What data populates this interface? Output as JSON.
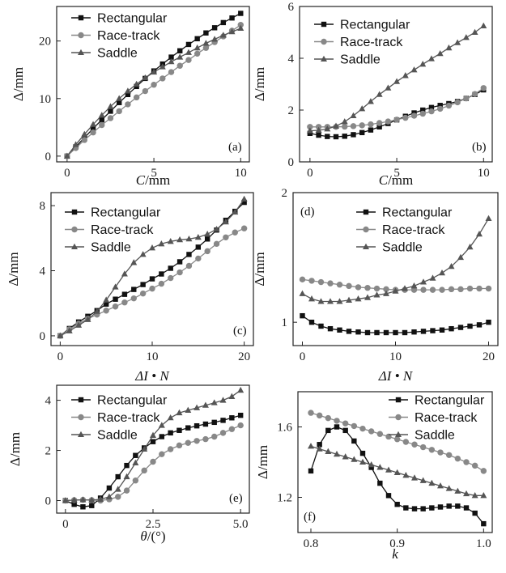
{
  "figure": {
    "series_names": [
      "Rectangular",
      "Race-track",
      "Saddle"
    ],
    "series_colors": [
      "#111111",
      "#888888",
      "#555555"
    ],
    "series_markers": [
      "square",
      "circle",
      "triangle"
    ]
  },
  "chart_data": [
    {
      "panel": "(a)",
      "type": "line",
      "xlabel_italic": "C",
      "xlabel_rest": "/mm",
      "ylabel": "Δ/mm",
      "xlim": [
        -0.6,
        10.5
      ],
      "ylim": [
        -1,
        26
      ],
      "xticks": [
        0,
        5,
        10
      ],
      "yticks": [
        0,
        10,
        20
      ],
      "legend": "top-left",
      "grid": false,
      "x": [
        0,
        0.5,
        1,
        1.5,
        2,
        2.5,
        3,
        3.5,
        4,
        4.5,
        5,
        5.5,
        6,
        6.5,
        7,
        7.5,
        8,
        8.5,
        9,
        9.5,
        10
      ],
      "series": [
        {
          "name": "Rectangular",
          "values": [
            0,
            1.6,
            3.2,
            4.8,
            6.3,
            7.8,
            9.3,
            10.7,
            12.1,
            13.5,
            14.8,
            16.0,
            17.2,
            18.3,
            19.4,
            20.4,
            21.4,
            22.3,
            23.2,
            24.0,
            24.8
          ]
        },
        {
          "name": "Race-track",
          "values": [
            0,
            1.4,
            2.8,
            4.1,
            5.4,
            6.6,
            7.8,
            9.0,
            10.2,
            11.3,
            12.4,
            13.5,
            14.6,
            15.7,
            16.7,
            17.8,
            18.8,
            19.8,
            20.8,
            21.8,
            22.8
          ]
        },
        {
          "name": "Saddle",
          "values": [
            0,
            2.0,
            3.8,
            5.5,
            7.1,
            8.6,
            10.0,
            11.3,
            12.5,
            13.6,
            14.6,
            15.5,
            16.4,
            17.2,
            18.0,
            18.8,
            19.6,
            20.3,
            21.0,
            21.6,
            22.2
          ]
        }
      ]
    },
    {
      "panel": "(b)",
      "type": "line",
      "xlabel_italic": "C",
      "xlabel_rest": "/mm",
      "ylabel": "Δ/mm",
      "xlim": [
        -0.6,
        10.5
      ],
      "ylim": [
        0,
        6
      ],
      "xticks": [
        0,
        5,
        10
      ],
      "yticks": [
        0,
        2,
        4,
        6
      ],
      "legend": "top-left",
      "grid": false,
      "x": [
        0,
        0.5,
        1,
        1.5,
        2,
        2.5,
        3,
        3.5,
        4,
        4.5,
        5,
        5.5,
        6,
        6.5,
        7,
        7.5,
        8,
        8.5,
        9,
        9.5,
        10
      ],
      "series": [
        {
          "name": "Rectangular",
          "values": [
            1.1,
            1.03,
            0.98,
            0.97,
            0.99,
            1.05,
            1.13,
            1.23,
            1.35,
            1.48,
            1.62,
            1.76,
            1.89,
            2.0,
            2.1,
            2.18,
            2.25,
            2.33,
            2.45,
            2.6,
            2.78
          ]
        },
        {
          "name": "Race-track",
          "values": [
            1.35,
            1.35,
            1.35,
            1.35,
            1.36,
            1.38,
            1.41,
            1.45,
            1.5,
            1.56,
            1.63,
            1.7,
            1.78,
            1.86,
            1.95,
            2.05,
            2.17,
            2.3,
            2.45,
            2.62,
            2.85
          ]
        },
        {
          "name": "Saddle",
          "values": [
            1.2,
            1.22,
            1.27,
            1.38,
            1.55,
            1.78,
            2.05,
            2.33,
            2.6,
            2.85,
            3.1,
            3.33,
            3.55,
            3.77,
            3.98,
            4.18,
            4.4,
            4.6,
            4.8,
            5.0,
            5.25
          ]
        }
      ]
    },
    {
      "panel": "(c)",
      "type": "line",
      "xlabel_rest": "ΔI • N",
      "ylabel": "Δ/mm",
      "xlim": [
        -1,
        21
      ],
      "ylim": [
        -0.6,
        8.8
      ],
      "xticks": [
        0,
        10,
        20
      ],
      "yticks": [
        0,
        4,
        8
      ],
      "legend": "top-left",
      "grid": false,
      "x": [
        0,
        1,
        2,
        3,
        4,
        5,
        6,
        7,
        8,
        9,
        10,
        11,
        12,
        13,
        14,
        15,
        16,
        17,
        18,
        19,
        20
      ],
      "series": [
        {
          "name": "Rectangular",
          "values": [
            0,
            0.45,
            0.85,
            1.2,
            1.55,
            1.95,
            2.25,
            2.55,
            2.85,
            3.15,
            3.5,
            3.8,
            4.15,
            4.55,
            5.0,
            5.45,
            5.95,
            6.5,
            7.1,
            7.65,
            8.2
          ]
        },
        {
          "name": "Race-track",
          "values": [
            0,
            0.4,
            0.75,
            1.05,
            1.3,
            1.55,
            1.8,
            2.05,
            2.3,
            2.6,
            2.9,
            3.2,
            3.55,
            3.9,
            4.3,
            4.75,
            5.2,
            5.65,
            6.05,
            6.35,
            6.6
          ]
        },
        {
          "name": "Saddle",
          "values": [
            0,
            0.3,
            0.65,
            1.0,
            1.5,
            2.2,
            3.0,
            3.8,
            4.5,
            5.0,
            5.4,
            5.65,
            5.8,
            5.9,
            5.95,
            6.05,
            6.25,
            6.55,
            7.0,
            7.6,
            8.4
          ]
        }
      ]
    },
    {
      "panel": "(d)",
      "type": "line",
      "xlabel_rest": "ΔI • N",
      "ylabel": "Δ/mm",
      "xlim": [
        -1,
        21
      ],
      "ylim": [
        0.82,
        2.0
      ],
      "xticks": [
        0,
        10,
        20
      ],
      "yticks": [
        1,
        2
      ],
      "legend": "top-right",
      "grid": false,
      "x": [
        0,
        1,
        2,
        3,
        4,
        5,
        6,
        7,
        8,
        9,
        10,
        11,
        12,
        13,
        14,
        15,
        16,
        17,
        18,
        19,
        20
      ],
      "series": [
        {
          "name": "Rectangular",
          "values": [
            1.05,
            1.0,
            0.97,
            0.95,
            0.94,
            0.93,
            0.925,
            0.92,
            0.92,
            0.92,
            0.92,
            0.92,
            0.925,
            0.93,
            0.935,
            0.94,
            0.95,
            0.96,
            0.97,
            0.98,
            1.0
          ]
        },
        {
          "name": "Race-track",
          "values": [
            1.33,
            1.32,
            1.31,
            1.3,
            1.29,
            1.28,
            1.27,
            1.265,
            1.26,
            1.255,
            1.25,
            1.25,
            1.25,
            1.25,
            1.25,
            1.25,
            1.255,
            1.255,
            1.26,
            1.26,
            1.26
          ]
        },
        {
          "name": "Saddle",
          "values": [
            1.22,
            1.18,
            1.16,
            1.16,
            1.16,
            1.17,
            1.18,
            1.19,
            1.21,
            1.22,
            1.24,
            1.26,
            1.28,
            1.31,
            1.34,
            1.38,
            1.43,
            1.5,
            1.58,
            1.68,
            1.8
          ]
        }
      ]
    },
    {
      "panel": "(e)",
      "type": "line",
      "xlabel_italic": "θ",
      "xlabel_rest": "/(°)",
      "ylabel": "Δ/mm",
      "xlim": [
        -0.25,
        5.25
      ],
      "ylim": [
        -0.5,
        4.6
      ],
      "xticks": [
        0,
        2.5,
        5.0
      ],
      "xticklabels": [
        "0",
        "2.5",
        "5.0"
      ],
      "yticks": [
        0,
        2,
        4
      ],
      "legend": "top-left",
      "grid": false,
      "x": [
        0,
        0.25,
        0.5,
        0.75,
        1.0,
        1.25,
        1.5,
        1.75,
        2.0,
        2.25,
        2.5,
        2.75,
        3.0,
        3.25,
        3.5,
        3.75,
        4.0,
        4.25,
        4.5,
        4.75,
        5.0
      ],
      "series": [
        {
          "name": "Rectangular",
          "values": [
            0,
            -0.15,
            -0.25,
            -0.2,
            0.1,
            0.5,
            0.95,
            1.4,
            1.8,
            2.1,
            2.35,
            2.55,
            2.7,
            2.8,
            2.9,
            2.98,
            3.05,
            3.12,
            3.2,
            3.3,
            3.4
          ]
        },
        {
          "name": "Race-track",
          "values": [
            0,
            0.02,
            0.03,
            0.02,
            0.0,
            0.05,
            0.15,
            0.4,
            0.8,
            1.2,
            1.55,
            1.85,
            2.05,
            2.2,
            2.3,
            2.38,
            2.45,
            2.55,
            2.7,
            2.85,
            3.0
          ]
        },
        {
          "name": "Saddle",
          "values": [
            0,
            0.02,
            0.03,
            0.02,
            0.05,
            0.15,
            0.45,
            0.95,
            1.5,
            2.05,
            2.6,
            3.0,
            3.3,
            3.5,
            3.6,
            3.7,
            3.8,
            3.9,
            4.0,
            4.15,
            4.4
          ]
        }
      ]
    },
    {
      "panel": "(f)",
      "type": "line",
      "xlabel_italic": "k",
      "xlabel_rest": "",
      "ylabel": "Δ/mm",
      "xlim": [
        0.785,
        1.01
      ],
      "ylim": [
        1.0,
        1.8
      ],
      "xticks": [
        0.8,
        0.9,
        1.0
      ],
      "xticklabels": [
        "0.8",
        "0.9",
        "1.0"
      ],
      "yticks": [
        1.2,
        1.6
      ],
      "yticklabels": [
        "1.2",
        "1.6"
      ],
      "legend": "top-right",
      "grid": false,
      "x": [
        0.8,
        0.81,
        0.82,
        0.83,
        0.84,
        0.85,
        0.86,
        0.87,
        0.88,
        0.89,
        0.9,
        0.91,
        0.92,
        0.93,
        0.94,
        0.95,
        0.96,
        0.97,
        0.98,
        0.99,
        1.0
      ],
      "series": [
        {
          "name": "Rectangular",
          "values": [
            1.35,
            1.5,
            1.58,
            1.6,
            1.58,
            1.52,
            1.45,
            1.37,
            1.28,
            1.21,
            1.16,
            1.14,
            1.135,
            1.135,
            1.14,
            1.145,
            1.15,
            1.15,
            1.14,
            1.11,
            1.05
          ]
        },
        {
          "name": "Race-track",
          "values": [
            1.68,
            1.665,
            1.65,
            1.635,
            1.62,
            1.605,
            1.59,
            1.575,
            1.56,
            1.545,
            1.53,
            1.515,
            1.5,
            1.485,
            1.47,
            1.455,
            1.44,
            1.42,
            1.4,
            1.38,
            1.35
          ]
        },
        {
          "name": "Saddle",
          "values": [
            1.49,
            1.475,
            1.46,
            1.445,
            1.43,
            1.415,
            1.4,
            1.385,
            1.37,
            1.355,
            1.34,
            1.325,
            1.31,
            1.295,
            1.28,
            1.265,
            1.25,
            1.235,
            1.22,
            1.21,
            1.21
          ]
        }
      ]
    }
  ]
}
